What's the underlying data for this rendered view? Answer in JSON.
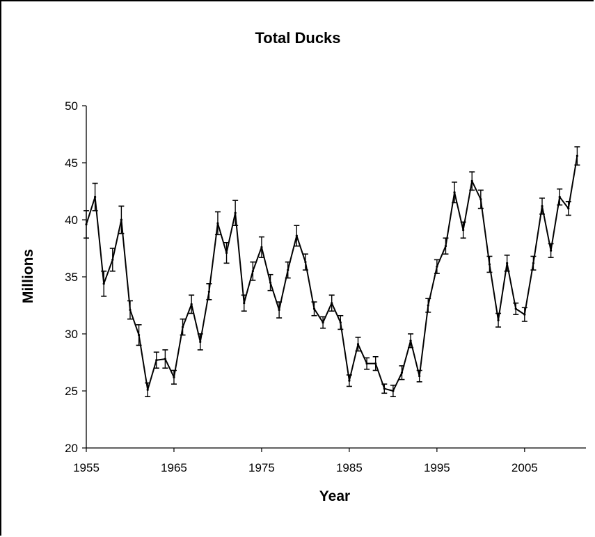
{
  "chart_data": {
    "type": "line",
    "title": "Total Ducks",
    "xlabel": "Year",
    "ylabel": "Millions",
    "xlim": [
      1955,
      2012
    ],
    "ylim": [
      20,
      50
    ],
    "x_ticks": [
      1955,
      1965,
      1975,
      1985,
      1995,
      2005
    ],
    "y_ticks": [
      20,
      25,
      30,
      35,
      40,
      45,
      50
    ],
    "x_tick_labels": [
      "1955",
      "1965",
      "1975",
      "1985",
      "1995",
      "2005"
    ],
    "y_tick_labels": [
      "20",
      "25",
      "30",
      "35",
      "40",
      "45",
      "50"
    ],
    "grid": false,
    "legend": "none",
    "line_color": "#000000",
    "series": [
      {
        "error_bars": true,
        "x": [
          1955,
          1956,
          1957,
          1958,
          1959,
          1960,
          1961,
          1962,
          1963,
          1964,
          1965,
          1966,
          1967,
          1968,
          1969,
          1970,
          1971,
          1972,
          1973,
          1974,
          1975,
          1976,
          1977,
          1978,
          1979,
          1980,
          1981,
          1982,
          1983,
          1984,
          1985,
          1986,
          1987,
          1988,
          1989,
          1990,
          1991,
          1992,
          1993,
          1994,
          1995,
          1996,
          1997,
          1998,
          1999,
          2000,
          2001,
          2002,
          2003,
          2004,
          2005,
          2006,
          2007,
          2008,
          2009,
          2010,
          2011
        ],
        "values": [
          39.6,
          42.0,
          34.4,
          36.5,
          40.0,
          32.1,
          29.9,
          25.1,
          27.7,
          27.8,
          26.2,
          30.6,
          32.6,
          29.3,
          33.7,
          39.7,
          37.1,
          40.6,
          32.7,
          35.5,
          37.6,
          34.5,
          32.1,
          35.6,
          38.6,
          36.3,
          32.2,
          31.0,
          32.7,
          31.0,
          25.9,
          29.1,
          27.4,
          27.4,
          25.2,
          25.0,
          26.6,
          29.4,
          26.3,
          32.5,
          35.9,
          37.7,
          42.4,
          39.1,
          43.4,
          41.8,
          36.1,
          31.2,
          36.2,
          32.2,
          31.7,
          36.2,
          41.2,
          37.3,
          42.0,
          41.0,
          45.6
        ],
        "errors": [
          1.2,
          1.2,
          1.1,
          1.0,
          1.2,
          0.8,
          0.9,
          0.6,
          0.7,
          0.8,
          0.6,
          0.7,
          0.8,
          0.7,
          0.7,
          1.0,
          0.9,
          1.1,
          0.7,
          0.8,
          0.9,
          0.7,
          0.7,
          0.7,
          0.9,
          0.7,
          0.6,
          0.5,
          0.7,
          0.6,
          0.5,
          0.6,
          0.5,
          0.6,
          0.4,
          0.5,
          0.6,
          0.6,
          0.5,
          0.6,
          0.6,
          0.7,
          0.9,
          0.7,
          0.8,
          0.8,
          0.7,
          0.6,
          0.7,
          0.5,
          0.6,
          0.6,
          0.7,
          0.6,
          0.7,
          0.6,
          0.8
        ]
      }
    ]
  }
}
